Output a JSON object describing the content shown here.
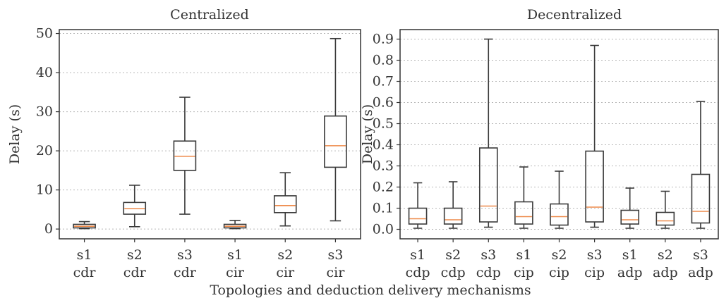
{
  "figure": {
    "shared_xlabel": "Topologies and deduction delivery mechanisms"
  },
  "chart_data": [
    {
      "type": "box",
      "title": "Centralized",
      "ylabel": "Delay (s)",
      "xlabel": "",
      "ylim": [
        -2.5,
        51
      ],
      "yticks": [
        0,
        10,
        20,
        30,
        40,
        50
      ],
      "grid": "horizontal-dotted",
      "median_color": "#ee8a4a",
      "categories": [
        [
          "s1",
          "cdr"
        ],
        [
          "s2",
          "cdr"
        ],
        [
          "s3",
          "cdr"
        ],
        [
          "s1",
          "cir"
        ],
        [
          "s2",
          "cir"
        ],
        [
          "s3",
          "cir"
        ]
      ],
      "boxes": [
        {
          "whislo": 0.1,
          "q1": 0.3,
          "med": 0.7,
          "q3": 1.2,
          "whishi": 1.9
        },
        {
          "whislo": 0.6,
          "q1": 3.8,
          "med": 5.2,
          "q3": 6.8,
          "whishi": 11.2
        },
        {
          "whislo": 3.8,
          "q1": 15.0,
          "med": 18.6,
          "q3": 22.5,
          "whishi": 33.7
        },
        {
          "whislo": 0.1,
          "q1": 0.3,
          "med": 0.7,
          "q3": 1.2,
          "whishi": 2.2
        },
        {
          "whislo": 0.8,
          "q1": 4.2,
          "med": 6.0,
          "q3": 8.5,
          "whishi": 14.4
        },
        {
          "whislo": 2.1,
          "q1": 15.8,
          "med": 21.3,
          "q3": 28.9,
          "whishi": 48.7
        }
      ]
    },
    {
      "type": "box",
      "title": "Decentralized",
      "ylabel": "Delay (s)",
      "xlabel": "",
      "ylim": [
        -0.045,
        0.945
      ],
      "yticks": [
        0.0,
        0.1,
        0.2,
        0.3,
        0.4,
        0.5,
        0.6,
        0.7,
        0.8,
        0.9
      ],
      "ytick_labels": [
        "0.0",
        "0.1",
        "0.2",
        "0.3",
        "0.4",
        "0.5",
        "0.6",
        "0.7",
        "0.8",
        "0.9"
      ],
      "grid": "horizontal-dotted",
      "median_color": "#ee8a4a",
      "categories": [
        [
          "s1",
          "cdp"
        ],
        [
          "s2",
          "cdp"
        ],
        [
          "s3",
          "cdp"
        ],
        [
          "s1",
          "cip"
        ],
        [
          "s2",
          "cip"
        ],
        [
          "s3",
          "cip"
        ],
        [
          "s1",
          "adp"
        ],
        [
          "s2",
          "adp"
        ],
        [
          "s3",
          "adp"
        ]
      ],
      "boxes": [
        {
          "whislo": 0.005,
          "q1": 0.025,
          "med": 0.05,
          "q3": 0.1,
          "whishi": 0.22
        },
        {
          "whislo": 0.005,
          "q1": 0.025,
          "med": 0.045,
          "q3": 0.1,
          "whishi": 0.225
        },
        {
          "whislo": 0.01,
          "q1": 0.035,
          "med": 0.11,
          "q3": 0.385,
          "whishi": 0.9
        },
        {
          "whislo": 0.005,
          "q1": 0.025,
          "med": 0.06,
          "q3": 0.13,
          "whishi": 0.295
        },
        {
          "whislo": 0.005,
          "q1": 0.02,
          "med": 0.06,
          "q3": 0.12,
          "whishi": 0.275
        },
        {
          "whislo": 0.01,
          "q1": 0.035,
          "med": 0.105,
          "q3": 0.37,
          "whishi": 0.87
        },
        {
          "whislo": 0.005,
          "q1": 0.025,
          "med": 0.045,
          "q3": 0.09,
          "whishi": 0.195
        },
        {
          "whislo": 0.005,
          "q1": 0.02,
          "med": 0.04,
          "q3": 0.08,
          "whishi": 0.18
        },
        {
          "whislo": 0.005,
          "q1": 0.03,
          "med": 0.085,
          "q3": 0.26,
          "whishi": 0.605
        }
      ]
    }
  ]
}
